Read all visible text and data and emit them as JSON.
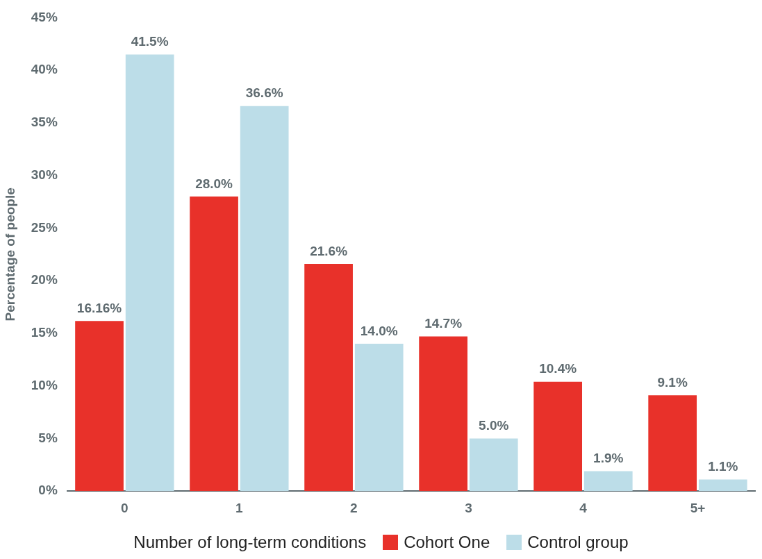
{
  "chart_data": {
    "type": "bar",
    "ylabel": "Percentage of people",
    "legend_title": "Number of long-term conditions",
    "categories": [
      "0",
      "1",
      "2",
      "3",
      "4",
      "5+"
    ],
    "series": [
      {
        "name": "Cohort One",
        "color": "#e8312a",
        "values": [
          16.16,
          28.0,
          21.6,
          14.7,
          10.4,
          9.1
        ],
        "value_labels": [
          "16.16%",
          "28.0%",
          "21.6%",
          "14.7%",
          "10.4%",
          "9.1%"
        ]
      },
      {
        "name": "Control group",
        "color": "#bcdde8",
        "values": [
          41.5,
          36.6,
          14.0,
          5.0,
          1.9,
          1.1
        ],
        "value_labels": [
          "41.5%",
          "36.6%",
          "14.0%",
          "5.0%",
          "1.9%",
          "1.1%"
        ]
      }
    ],
    "ylim": [
      0,
      45
    ],
    "yticks": [
      {
        "value": 0,
        "label": "0%"
      },
      {
        "value": 5,
        "label": "5%"
      },
      {
        "value": 10,
        "label": "10%"
      },
      {
        "value": 15,
        "label": "15%"
      },
      {
        "value": 20,
        "label": "20%"
      },
      {
        "value": 25,
        "label": "25%"
      },
      {
        "value": 30,
        "label": "30%"
      },
      {
        "value": 35,
        "label": "35%"
      },
      {
        "value": 40,
        "label": "40%"
      },
      {
        "value": 45,
        "label": "45%"
      }
    ],
    "grid": false,
    "legend": "bottom"
  }
}
